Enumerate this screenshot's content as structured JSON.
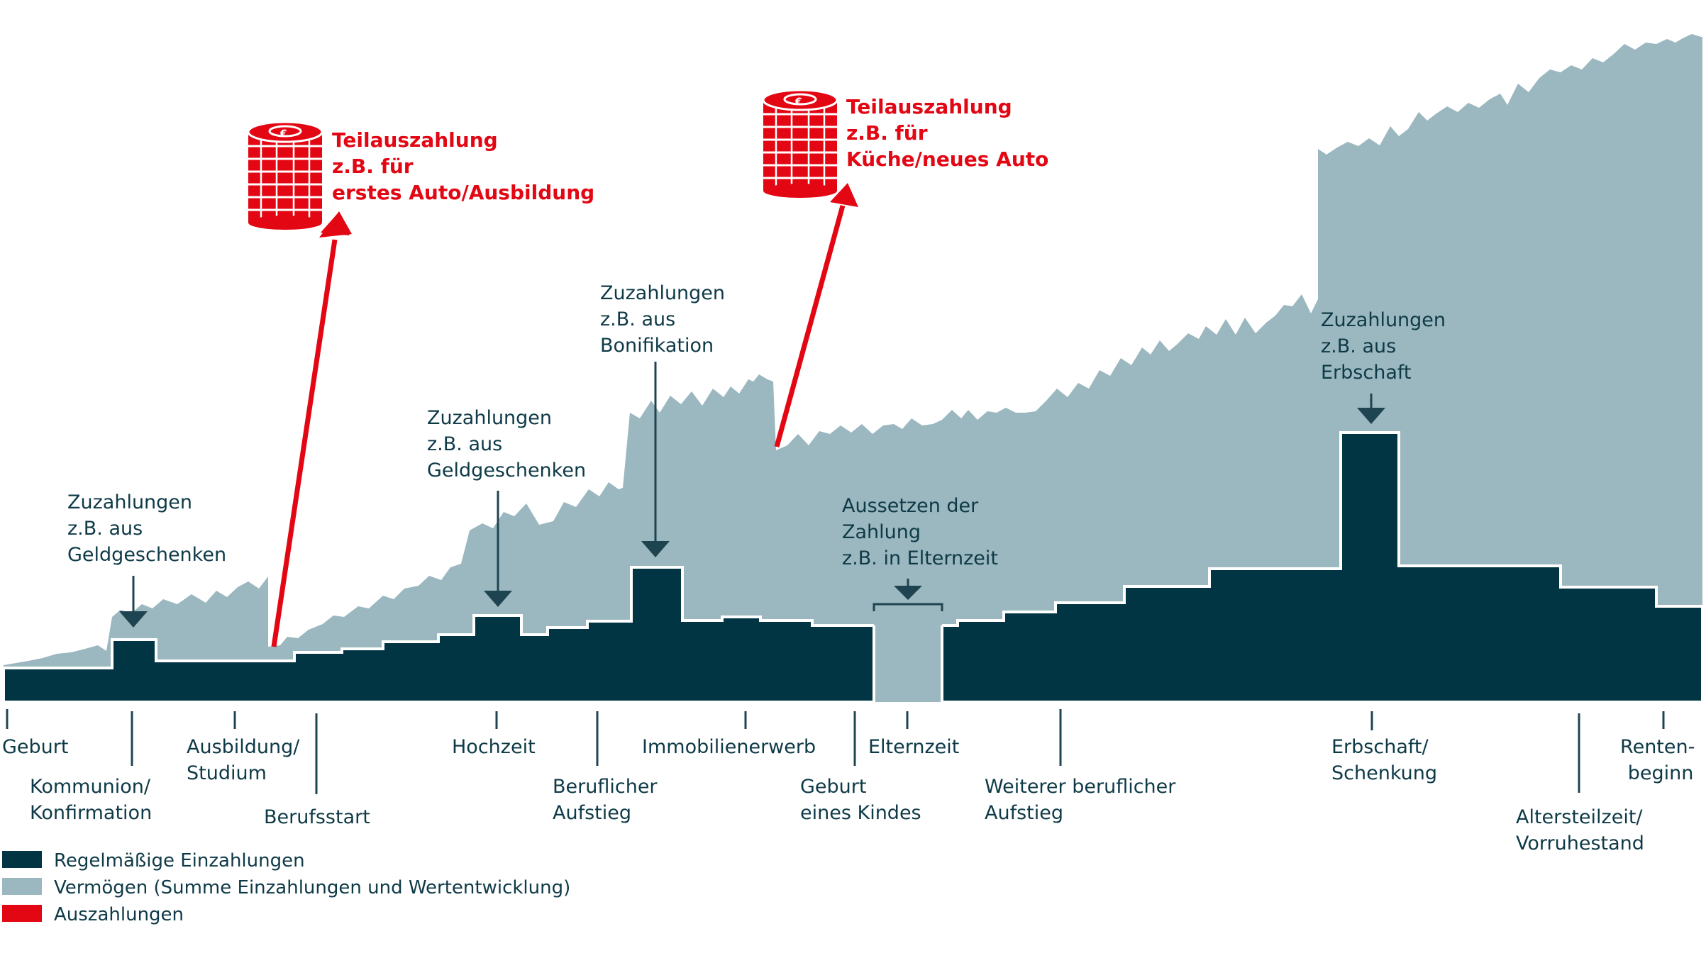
{
  "colors": {
    "dark": "#023544",
    "light": "#9bb7bf",
    "red": "#e30613",
    "text": "#0e3a47"
  },
  "icons": [
    "euro-coin-stack-icon",
    "euro-coin-stack-icon"
  ],
  "payouts": [
    {
      "lines": [
        "Teilauszahlung",
        "z.B. für",
        "erstes Auto/Ausbildung"
      ]
    },
    {
      "lines": [
        "Teilauszahlung",
        "z.B. für",
        "Küche/neues Auto"
      ]
    }
  ],
  "callouts": [
    {
      "lines": [
        "Zuzahlungen",
        "z.B. aus",
        "Geldgeschenken"
      ]
    },
    {
      "lines": [
        "Zuzahlungen",
        "z.B. aus",
        "Geldgeschenken"
      ]
    },
    {
      "lines": [
        "Zuzahlungen",
        "z.B. aus",
        "Bonifikation"
      ]
    },
    {
      "lines": [
        "Aussetzen der",
        "Zahlung",
        "z.B. in Elternzeit"
      ]
    },
    {
      "lines": [
        "Zuzahlungen",
        "z.B. aus",
        "Erbschaft"
      ]
    }
  ],
  "timeline": [
    {
      "lines": [
        "Geburt"
      ]
    },
    {
      "lines": [
        "Kommunion/",
        "Konfirmation"
      ]
    },
    {
      "lines": [
        "Ausbildung/",
        "Studium"
      ]
    },
    {
      "lines": [
        "Berufsstart"
      ]
    },
    {
      "lines": [
        "Hochzeit"
      ]
    },
    {
      "lines": [
        "Beruflicher",
        "Aufstieg"
      ]
    },
    {
      "lines": [
        "Immobilienerwerb"
      ]
    },
    {
      "lines": [
        "Geburt",
        "eines Kindes"
      ]
    },
    {
      "lines": [
        "Elternzeit"
      ]
    },
    {
      "lines": [
        "Weiterer beruflicher",
        "Aufstieg"
      ]
    },
    {
      "lines": [
        "Erbschaft/",
        "Schenkung"
      ]
    },
    {
      "lines": [
        "Altersteilzeit/",
        "Vorruhestand"
      ]
    },
    {
      "lines": [
        "Renten-",
        "beginn"
      ]
    }
  ],
  "legend": [
    {
      "label": "Regelmäßige Einzahlungen",
      "color": "#023544"
    },
    {
      "label": "Vermögen (Summe Einzahlungen und Wertentwicklung)",
      "color": "#9bb7bf"
    },
    {
      "label": "Auszahlungen",
      "color": "#e30613"
    }
  ]
}
